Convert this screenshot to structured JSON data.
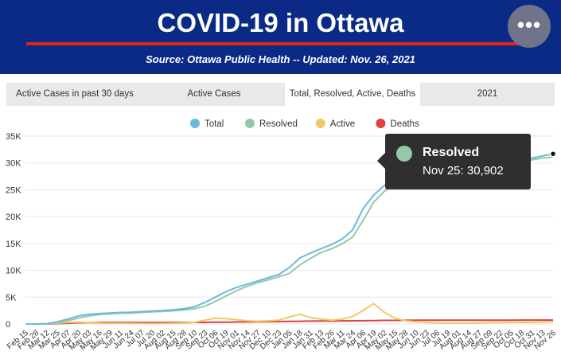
{
  "header": {
    "title": "COVID-19 in Ottawa",
    "subtitle": "Source:  Ottawa Public Health -- Updated:  Nov. 26, 2021"
  },
  "tabs": [
    {
      "label": "Active Cases in past 30 days"
    },
    {
      "label": "Active Cases"
    },
    {
      "label": "Total, Resolved, Active, Deaths"
    },
    {
      "label": "2021"
    }
  ],
  "colors": {
    "header_bg": "#0a2a86",
    "accent_red": "#e2231a",
    "total": "#6bb9e0",
    "resolved": "#93c9a7",
    "active": "#f1c964",
    "deaths": "#e04040"
  },
  "icons": {
    "more": "more-horizontal-icon"
  },
  "tooltip": {
    "series": "Resolved",
    "text": "Nov 25: 30,902"
  },
  "chart_data": {
    "type": "line",
    "legend_position": "top-center",
    "grid": "horizontal",
    "ylim": [
      0,
      35000
    ],
    "y_ticks": [
      {
        "value": 0,
        "label": "0"
      },
      {
        "value": 5000,
        "label": "5K"
      },
      {
        "value": 10000,
        "label": "10K"
      },
      {
        "value": 15000,
        "label": "15K"
      },
      {
        "value": 20000,
        "label": "20K"
      },
      {
        "value": 25000,
        "label": "25K"
      },
      {
        "value": 30000,
        "label": "30K"
      },
      {
        "value": 35000,
        "label": "35K"
      }
    ],
    "x": [
      "Feb 15",
      "Feb 28",
      "Mar 12",
      "Mar 25",
      "Apr 07",
      "Apr 20",
      "May 03",
      "May 16",
      "May 29",
      "Jun 11",
      "Jun 24",
      "Jul 07",
      "Jul 20",
      "Aug 02",
      "Aug 15",
      "Aug 28",
      "Sep 10",
      "Sep 23",
      "Oct 06",
      "Oct 19",
      "Nov 01",
      "Nov 14",
      "Nov 27",
      "Dec 10",
      "Dec 23",
      "Jan 05",
      "Jan 18",
      "Jan 31",
      "Feb 13",
      "Feb 26",
      "Mar 11",
      "Mar 24",
      "Apr 06",
      "Apr 19",
      "May 02",
      "May 15",
      "May 28",
      "Jun 10",
      "Jun 23",
      "Jul 06",
      "Jul 19",
      "Aug 01",
      "Aug 14",
      "Aug 27",
      "Sep 09",
      "Sep 22",
      "Oct 05",
      "Oct 18",
      "Oct 31",
      "Nov 13",
      "Nov 26"
    ],
    "series": [
      {
        "name": "Total",
        "color": "#6bb9e0",
        "values": [
          0,
          0,
          50,
          400,
          900,
          1500,
          1800,
          1950,
          2050,
          2150,
          2200,
          2300,
          2400,
          2500,
          2650,
          2850,
          3200,
          4000,
          5000,
          6000,
          6800,
          7400,
          8000,
          8600,
          9200,
          10500,
          12300,
          13200,
          14000,
          14800,
          15800,
          17500,
          21500,
          24000,
          25800,
          26800,
          27500,
          27900,
          28200,
          28400,
          28700,
          28900,
          29100,
          29300,
          29600,
          29900,
          30200,
          30500,
          30900,
          31300,
          31700
        ]
      },
      {
        "name": "Resolved",
        "color": "#93c9a7",
        "values": [
          0,
          0,
          20,
          250,
          600,
          1100,
          1500,
          1750,
          1900,
          2000,
          2050,
          2150,
          2250,
          2350,
          2450,
          2600,
          2850,
          3300,
          4200,
          5200,
          6200,
          7000,
          7700,
          8200,
          8800,
          9400,
          11000,
          12200,
          13300,
          14000,
          14900,
          16200,
          19300,
          22700,
          24700,
          26000,
          27000,
          27600,
          28000,
          28300,
          28500,
          28800,
          29000,
          29200,
          29400,
          29700,
          30000,
          30300,
          30600,
          30900,
          31100
        ]
      },
      {
        "name": "Active",
        "color": "#f1c964",
        "values": [
          0,
          0,
          30,
          150,
          300,
          350,
          250,
          150,
          100,
          100,
          100,
          80,
          80,
          80,
          120,
          200,
          300,
          700,
          1100,
          1000,
          800,
          600,
          500,
          600,
          700,
          1300,
          1800,
          1200,
          900,
          700,
          900,
          1400,
          2500,
          3800,
          2200,
          1100,
          600,
          400,
          300,
          200,
          150,
          150,
          150,
          200,
          250,
          250,
          300,
          300,
          300,
          350,
          400
        ]
      },
      {
        "name": "Deaths",
        "color": "#e04040",
        "values": [
          0,
          0,
          5,
          60,
          150,
          220,
          260,
          270,
          275,
          277,
          278,
          280,
          281,
          282,
          283,
          285,
          290,
          300,
          320,
          345,
          370,
          390,
          410,
          430,
          450,
          470,
          500,
          530,
          550,
          565,
          575,
          590,
          610,
          640,
          660,
          670,
          680,
          690,
          695,
          700,
          702,
          705,
          707,
          710,
          712,
          715,
          718,
          720,
          722,
          725,
          730
        ]
      }
    ]
  }
}
